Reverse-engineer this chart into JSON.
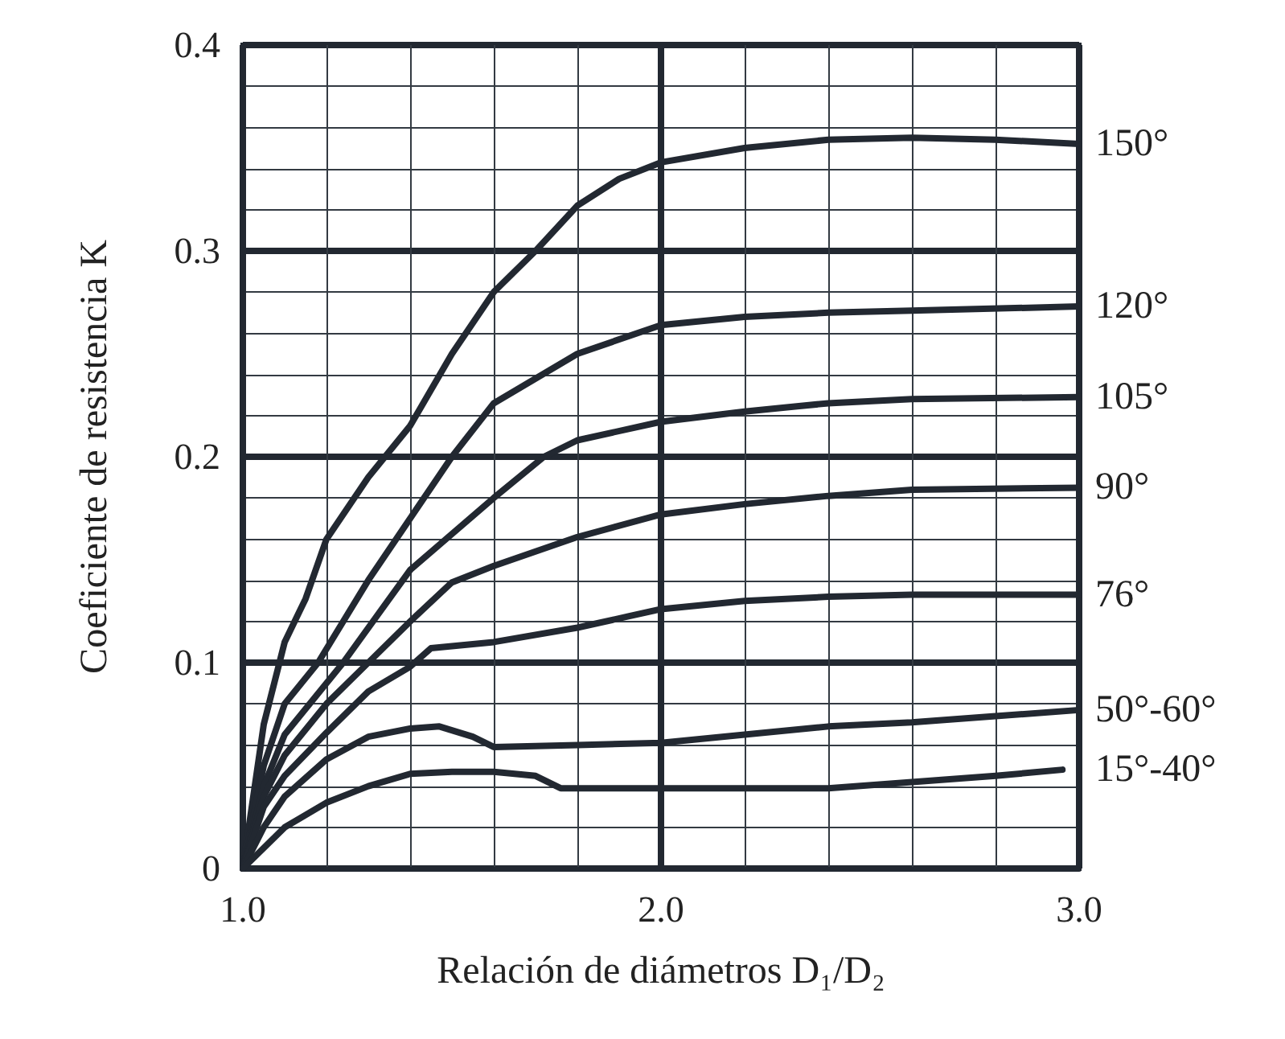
{
  "chart_data": {
    "type": "line",
    "xlabel": "Relación de diámetros D₁/D₂",
    "ylabel": "Coeficiente de resistencia K",
    "xlim": [
      1,
      3
    ],
    "ylim": [
      0,
      0.4
    ],
    "xticks": [
      {
        "value": 1,
        "label": "1.0"
      },
      {
        "value": 1.2,
        "label": null
      },
      {
        "value": 1.4,
        "label": null
      },
      {
        "value": 1.6,
        "label": null
      },
      {
        "value": 1.8,
        "label": null
      },
      {
        "value": 2,
        "label": "2.0"
      },
      {
        "value": 2.2,
        "label": null
      },
      {
        "value": 2.4,
        "label": null
      },
      {
        "value": 2.6,
        "label": null
      },
      {
        "value": 2.8,
        "label": null
      },
      {
        "value": 3,
        "label": "3.0"
      }
    ],
    "yticks": [
      0,
      {
        "value": 0.02,
        "label": null
      },
      {
        "value": 0.04,
        "label": null
      },
      {
        "value": 0.06,
        "label": null
      },
      {
        "value": 0.08,
        "label": null
      },
      0.1,
      {
        "value": 0.12,
        "label": null
      },
      {
        "value": 0.14,
        "label": null
      },
      {
        "value": 0.16,
        "label": null
      },
      {
        "value": 0.18,
        "label": null
      },
      0.2,
      {
        "value": 0.22,
        "label": null
      },
      {
        "value": 0.24,
        "label": null
      },
      {
        "value": 0.26,
        "label": null
      },
      {
        "value": 0.28,
        "label": null
      },
      0.3,
      {
        "value": 0.32,
        "label": null
      },
      {
        "value": 0.34,
        "label": null
      },
      {
        "value": 0.36,
        "label": null
      },
      {
        "value": 0.38,
        "label": null
      },
      0.4
    ],
    "grid": true,
    "legend": false,
    "marker": "none",
    "line_style": "solid",
    "series": [
      {
        "name": "150°",
        "color": "#222831",
        "x": [
          1,
          1.05,
          1.1,
          1.15,
          1.2,
          1.3,
          1.4,
          1.5,
          1.6,
          1.7,
          1.8,
          1.9,
          2,
          2.2,
          2.4,
          2.6,
          2.8,
          3
        ],
        "values": [
          0,
          0.07,
          0.11,
          0.131,
          0.16,
          0.19,
          0.215,
          0.25,
          0.28,
          0.3,
          0.322,
          0.335,
          0.343,
          0.35,
          0.354,
          0.355,
          0.354,
          0.352
        ]
      },
      {
        "name": "120°",
        "color": "#222831",
        "x": [
          1,
          1.05,
          1.1,
          1.18,
          1.3,
          1.4,
          1.5,
          1.6,
          1.8,
          2,
          2.2,
          2.4,
          2.6,
          3
        ],
        "values": [
          0,
          0.05,
          0.08,
          0.1,
          0.14,
          0.17,
          0.2,
          0.226,
          0.25,
          0.264,
          0.268,
          0.27,
          0.271,
          0.273
        ]
      },
      {
        "name": "105°",
        "color": "#222831",
        "x": [
          1,
          1.05,
          1.1,
          1.24,
          1.4,
          1.6,
          1.72,
          1.8,
          2,
          2.2,
          2.4,
          2.6,
          3
        ],
        "values": [
          0,
          0.04,
          0.065,
          0.1,
          0.145,
          0.18,
          0.2,
          0.208,
          0.217,
          0.222,
          0.226,
          0.228,
          0.229
        ]
      },
      {
        "name": "90°",
        "color": "#222831",
        "x": [
          1,
          1.05,
          1.1,
          1.2,
          1.3,
          1.4,
          1.5,
          1.6,
          1.8,
          2,
          2.2,
          2.4,
          2.6,
          3
        ],
        "values": [
          0,
          0.035,
          0.055,
          0.08,
          0.1,
          0.12,
          0.139,
          0.147,
          0.161,
          0.172,
          0.177,
          0.181,
          0.184,
          0.185
        ]
      },
      {
        "name": "76°",
        "color": "#222831",
        "x": [
          1,
          1.05,
          1.1,
          1.2,
          1.3,
          1.4,
          1.45,
          1.55,
          1.6,
          1.8,
          2,
          2.2,
          2.4,
          2.6,
          3
        ],
        "values": [
          0,
          0.03,
          0.045,
          0.066,
          0.086,
          0.098,
          0.107,
          0.109,
          0.11,
          0.117,
          0.126,
          0.13,
          0.132,
          0.133,
          0.133
        ]
      },
      {
        "name": "50°-60°",
        "color": "#222831",
        "x": [
          1,
          1.05,
          1.1,
          1.2,
          1.3,
          1.4,
          1.47,
          1.55,
          1.6,
          1.8,
          2,
          2.2,
          2.4,
          2.6,
          2.8,
          3
        ],
        "values": [
          0,
          0.02,
          0.035,
          0.053,
          0.064,
          0.068,
          0.069,
          0.064,
          0.059,
          0.06,
          0.061,
          0.065,
          0.069,
          0.071,
          0.074,
          0.077
        ]
      },
      {
        "name": "15°-40°",
        "color": "#222831",
        "x": [
          1,
          1.1,
          1.2,
          1.3,
          1.4,
          1.5,
          1.6,
          1.7,
          1.76,
          1.8,
          2,
          2.2,
          2.4,
          2.6,
          2.8,
          2.96
        ],
        "values": [
          0,
          0.02,
          0.032,
          0.04,
          0.046,
          0.047,
          0.047,
          0.045,
          0.039,
          0.039,
          0.039,
          0.039,
          0.039,
          0.042,
          0.045,
          0.048
        ]
      }
    ]
  }
}
